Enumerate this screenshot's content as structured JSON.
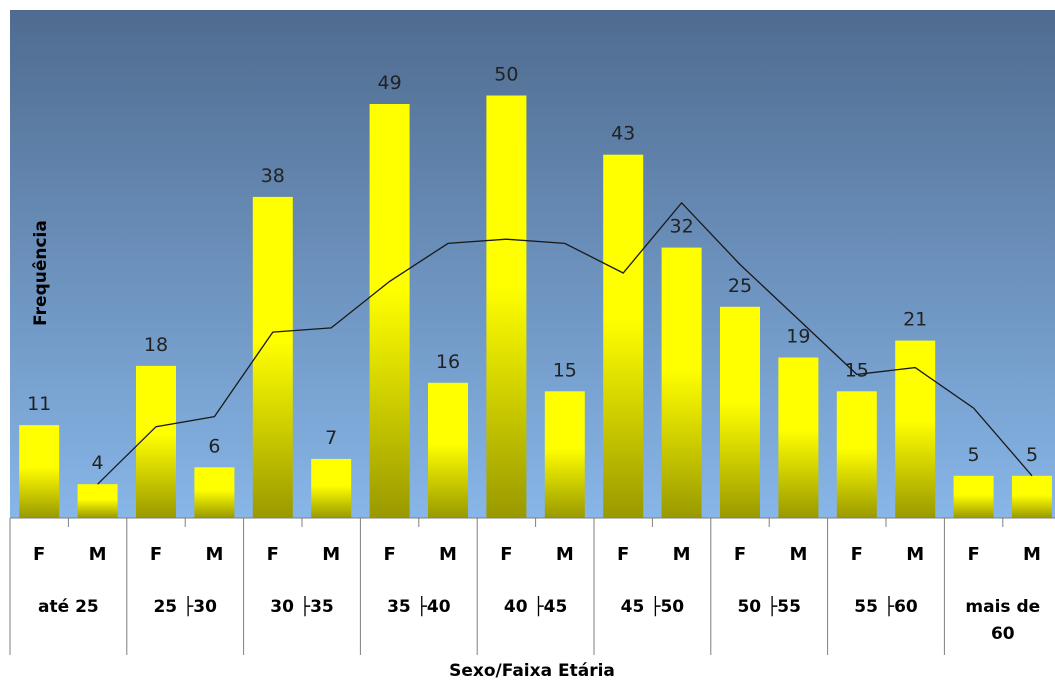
{
  "chart_data": {
    "type": "bar",
    "xlabel": "Sexo/Faixa Etária",
    "ylabel": "Frequência",
    "ylim": [
      0,
      55
    ],
    "groups": [
      "até 25",
      "25 ├30",
      "30 ├35",
      "35 ├40",
      "40 ├45",
      "45 ├50",
      "50 ├55",
      "55 ├60",
      "mais de 60"
    ],
    "sexes": [
      "F",
      "M"
    ],
    "values": [
      11,
      4,
      18,
      6,
      38,
      7,
      49,
      16,
      50,
      15,
      43,
      32,
      25,
      19,
      15,
      21,
      5,
      5
    ],
    "trend": [
      4.0,
      10.8,
      12.0,
      22.0,
      22.5,
      28.0,
      32.5,
      33.0,
      32.5,
      29.0,
      37.3,
      30.0,
      23.5,
      17.0,
      17.8,
      13.0,
      5.0
    ],
    "colors": {
      "background_top": "#4f6b8f",
      "background_bottom": "#87b6e8",
      "bar_top": "#ffff00",
      "bar_bottom": "#999900",
      "trend_line": "#1a1a1a"
    },
    "grid": false,
    "legend": "none"
  }
}
